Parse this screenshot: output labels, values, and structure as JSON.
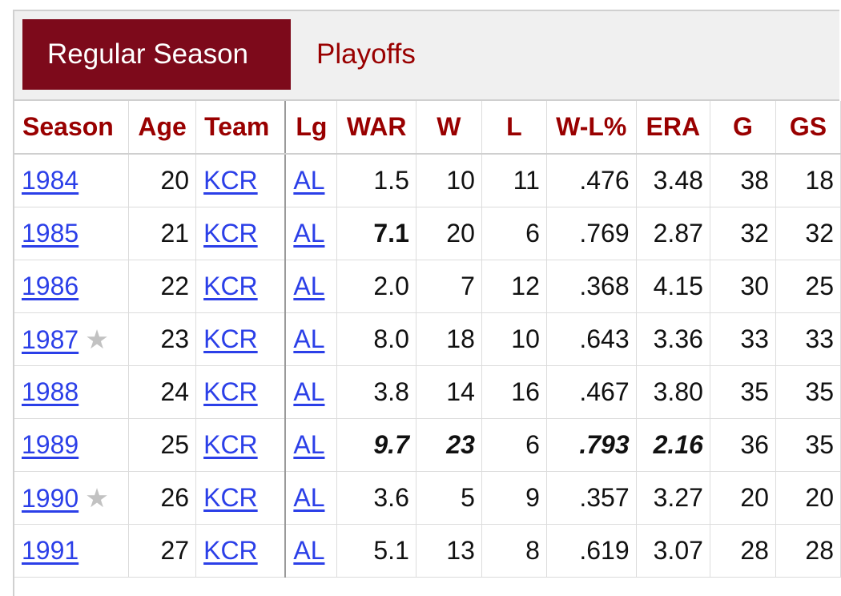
{
  "tabs": {
    "regular": "Regular Season",
    "playoffs": "Playoffs"
  },
  "columns": [
    "Season",
    "Age",
    "Team",
    "Lg",
    "WAR",
    "W",
    "L",
    "W-L%",
    "ERA",
    "G",
    "GS"
  ],
  "rows": [
    {
      "season": "1984",
      "allstar": false,
      "age": "20",
      "team": "KCR",
      "lg": "AL",
      "war": "1.5",
      "w": "10",
      "l": "11",
      "wlpct": ".476",
      "era": "3.48",
      "g": "38",
      "gs": "18"
    },
    {
      "season": "1985",
      "allstar": false,
      "age": "21",
      "team": "KCR",
      "lg": "AL",
      "war": "7.1",
      "w": "20",
      "l": "6",
      "wlpct": ".769",
      "era": "2.87",
      "g": "32",
      "gs": "32"
    },
    {
      "season": "1986",
      "allstar": false,
      "age": "22",
      "team": "KCR",
      "lg": "AL",
      "war": "2.0",
      "w": "7",
      "l": "12",
      "wlpct": ".368",
      "era": "4.15",
      "g": "30",
      "gs": "25"
    },
    {
      "season": "1987",
      "allstar": true,
      "age": "23",
      "team": "KCR",
      "lg": "AL",
      "war": "8.0",
      "w": "18",
      "l": "10",
      "wlpct": ".643",
      "era": "3.36",
      "g": "33",
      "gs": "33"
    },
    {
      "season": "1988",
      "allstar": false,
      "age": "24",
      "team": "KCR",
      "lg": "AL",
      "war": "3.8",
      "w": "14",
      "l": "16",
      "wlpct": ".467",
      "era": "3.80",
      "g": "35",
      "gs": "35"
    },
    {
      "season": "1989",
      "allstar": false,
      "age": "25",
      "team": "KCR",
      "lg": "AL",
      "war": "9.7",
      "w": "23",
      "l": "6",
      "wlpct": ".793",
      "era": "2.16",
      "g": "36",
      "gs": "35"
    },
    {
      "season": "1990",
      "allstar": true,
      "age": "26",
      "team": "KCR",
      "lg": "AL",
      "war": "3.6",
      "w": "5",
      "l": "9",
      "wlpct": ".357",
      "era": "3.27",
      "g": "20",
      "gs": "20"
    },
    {
      "season": "1991",
      "allstar": false,
      "age": "27",
      "team": "KCR",
      "lg": "AL",
      "war": "5.1",
      "w": "13",
      "l": "8",
      "wlpct": ".619",
      "era": "3.07",
      "g": "28",
      "gs": "28"
    }
  ],
  "styles": {
    "1985": {
      "war": "bold"
    },
    "1989": {
      "war": "lead",
      "w": "lead",
      "wlpct": "lead",
      "era": "lead"
    }
  },
  "icons": {
    "allstar": "star-icon"
  },
  "colors": {
    "accent": "#7d0a1b",
    "header_text": "#990000",
    "link": "#2b3fe8",
    "star": "#c2c2c2"
  }
}
